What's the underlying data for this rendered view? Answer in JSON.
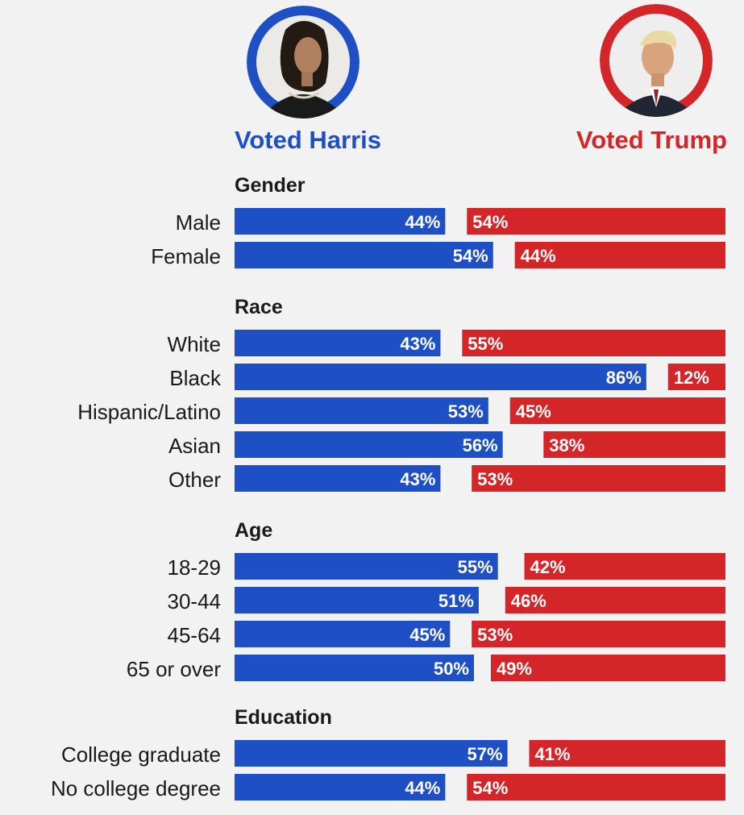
{
  "header": {
    "harris_label": "Voted Harris",
    "trump_label": "Voted Trump",
    "harris_photo": "harris-portrait",
    "trump_photo": "trump-portrait"
  },
  "colors": {
    "harris": "#1f4fc4",
    "trump": "#d42529",
    "background": "#f2f2f2",
    "text": "#1a1a1a"
  },
  "chart_data": {
    "type": "bar",
    "orientation": "horizontal-diverging",
    "series": [
      {
        "name": "Voted Harris",
        "color": "#1f4fc4"
      },
      {
        "name": "Voted Trump",
        "color": "#d42529"
      }
    ],
    "groups": [
      {
        "title": "Gender",
        "rows": [
          {
            "label": "Male",
            "harris": 44,
            "trump": 54
          },
          {
            "label": "Female",
            "harris": 54,
            "trump": 44
          }
        ]
      },
      {
        "title": "Race",
        "rows": [
          {
            "label": "White",
            "harris": 43,
            "trump": 55
          },
          {
            "label": "Black",
            "harris": 86,
            "trump": 12
          },
          {
            "label": "Hispanic/Latino",
            "harris": 53,
            "trump": 45
          },
          {
            "label": "Asian",
            "harris": 56,
            "trump": 38
          },
          {
            "label": "Other",
            "harris": 43,
            "trump": 53
          }
        ]
      },
      {
        "title": "Age",
        "rows": [
          {
            "label": "18-29",
            "harris": 55,
            "trump": 42
          },
          {
            "label": "30-44",
            "harris": 51,
            "trump": 46
          },
          {
            "label": "45-64",
            "harris": 45,
            "trump": 53
          },
          {
            "label": "65 or over",
            "harris": 50,
            "trump": 49
          }
        ]
      },
      {
        "title": "Education",
        "rows": [
          {
            "label": "College graduate",
            "harris": 57,
            "trump": 41
          },
          {
            "label": "No college degree",
            "harris": 44,
            "trump": 54
          }
        ]
      }
    ],
    "value_suffix": "%"
  }
}
